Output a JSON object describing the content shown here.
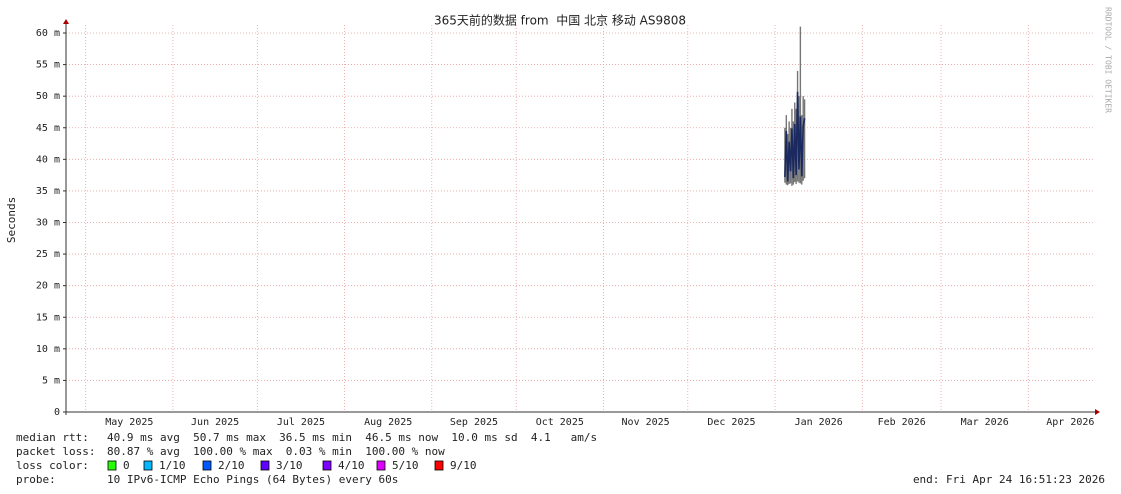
{
  "chart_data": {
    "type": "smokeping",
    "title": "365天前的数据 from  中国 北京 移动 AS9808",
    "ylabel": "Seconds",
    "watermark": "RRDTOOL / TOBI OETIKER",
    "xlim": [
      0,
      365
    ],
    "xticks": [
      {
        "value": 7,
        "label": "May 2025"
      },
      {
        "value": 38,
        "label": "Jun 2025"
      },
      {
        "value": 68,
        "label": "Jul 2025"
      },
      {
        "value": 99,
        "label": "Aug 2025"
      },
      {
        "value": 130,
        "label": "Sep 2025"
      },
      {
        "value": 160,
        "label": "Oct 2025"
      },
      {
        "value": 191,
        "label": "Nov 2025"
      },
      {
        "value": 221,
        "label": "Dec 2025"
      },
      {
        "value": 252,
        "label": "Jan 2026"
      },
      {
        "value": 283,
        "label": "Feb 2026"
      },
      {
        "value": 311,
        "label": "Mar 2026"
      },
      {
        "value": 342,
        "label": "Apr 2026"
      }
    ],
    "ylim": [
      0,
      60
    ],
    "yticks": [
      0,
      {
        "value": 5,
        "label": "5 m"
      },
      {
        "value": 10,
        "label": "10 m"
      },
      {
        "value": 15,
        "label": "15 m"
      },
      {
        "value": 20,
        "label": "20 m"
      },
      {
        "value": 25,
        "label": "25 m"
      },
      {
        "value": 30,
        "label": "30 m"
      },
      {
        "value": 35,
        "label": "35 m"
      },
      {
        "value": 40,
        "label": "40 m"
      },
      {
        "value": 45,
        "label": "45 m"
      },
      {
        "value": 50,
        "label": "50 m"
      },
      {
        "value": 55,
        "label": "55 m"
      },
      {
        "value": 60,
        "label": "60 m"
      }
    ],
    "grid": true,
    "x": [
      255.5,
      256,
      256.5,
      257,
      257.5,
      258,
      258.5,
      259,
      259.5,
      260,
      260.5,
      261,
      261.5,
      262,
      262.5
    ],
    "values": [
      37.2,
      44.5,
      36.5,
      42.8,
      38.1,
      44.9,
      37.0,
      45.6,
      37.5,
      50.7,
      38.4,
      46.8,
      37.3,
      45.2,
      46.5
    ],
    "color": "#1a2a60",
    "smoke": {
      "color": "#555555",
      "low": [
        36.3,
        36.0,
        35.9,
        36.1,
        36.2,
        35.8,
        36.0,
        36.4,
        36.1,
        36.5,
        36.3,
        36.2,
        36.0,
        36.6,
        37.0
      ],
      "high": [
        45,
        47,
        44,
        46,
        45,
        48,
        46,
        49,
        48,
        54,
        50,
        61,
        47,
        50,
        49.5
      ]
    },
    "legend": {
      "rtt_label": "median rtt:",
      "rtt_text": "40.9 ms avg  50.7 ms max  36.5 ms min  46.5 ms now  10.0 ms sd  4.1   am/s",
      "loss_label": "packet loss:",
      "loss_text": "80.87 % avg  100.00 % max  0.03 % min  100.00 % now",
      "color_label": "loss color:",
      "colors": [
        {
          "label": "0",
          "color": "#26ff00"
        },
        {
          "label": "1/10",
          "color": "#00b8ff"
        },
        {
          "label": "2/10",
          "color": "#0059ff"
        },
        {
          "label": "3/10",
          "color": "#5e00ff"
        },
        {
          "label": "4/10",
          "color": "#7e00ff"
        },
        {
          "label": "5/10",
          "color": "#dd00ff"
        },
        {
          "label": "9/10",
          "color": "#ff0000"
        }
      ],
      "probe_label": "probe:",
      "probe_text": "10 IPv6-ICMP Echo Pings (64 Bytes) every 60s",
      "end": "end: Fri Apr 24 16:51:23 2026"
    }
  }
}
